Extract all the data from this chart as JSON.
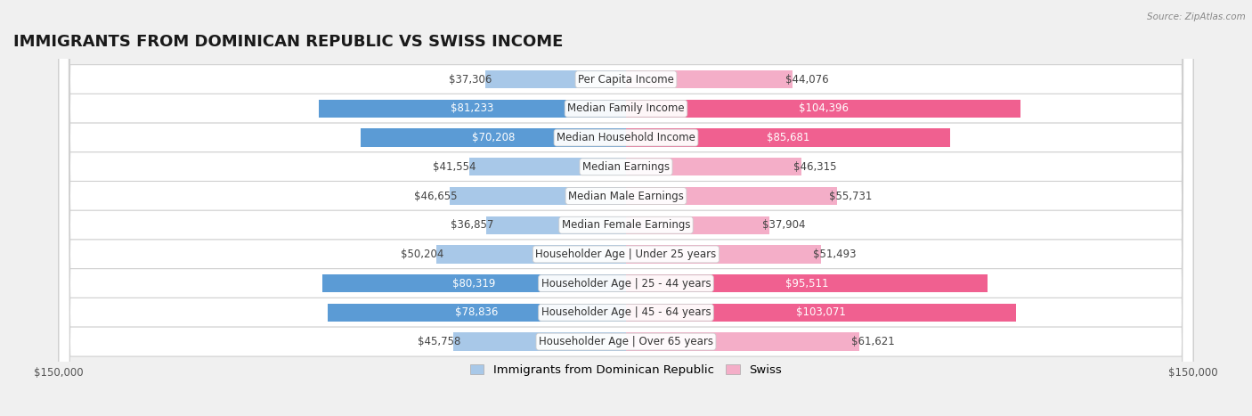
{
  "title": "IMMIGRANTS FROM DOMINICAN REPUBLIC VS SWISS INCOME",
  "source": "Source: ZipAtlas.com",
  "categories": [
    "Per Capita Income",
    "Median Family Income",
    "Median Household Income",
    "Median Earnings",
    "Median Male Earnings",
    "Median Female Earnings",
    "Householder Age | Under 25 years",
    "Householder Age | 25 - 44 years",
    "Householder Age | 45 - 64 years",
    "Householder Age | Over 65 years"
  ],
  "dominican": [
    37306,
    81233,
    70208,
    41554,
    46655,
    36857,
    50204,
    80319,
    78836,
    45758
  ],
  "swiss": [
    44076,
    104396,
    85681,
    46315,
    55731,
    37904,
    51493,
    95511,
    103071,
    61621
  ],
  "dominican_labels": [
    "$37,306",
    "$81,233",
    "$70,208",
    "$41,554",
    "$46,655",
    "$36,857",
    "$50,204",
    "$80,319",
    "$78,836",
    "$45,758"
  ],
  "swiss_labels": [
    "$44,076",
    "$104,396",
    "$85,681",
    "$46,315",
    "$55,731",
    "$37,904",
    "$51,493",
    "$95,511",
    "$103,071",
    "$61,621"
  ],
  "dominican_color_light": "#a8c8e8",
  "dominican_color_dark": "#5b9bd5",
  "swiss_color_light": "#f4aec8",
  "swiss_color_dark": "#f06090",
  "label_color_white": "#ffffff",
  "label_color_dark": "#444444",
  "max_value": 150000,
  "background_color": "#f0f0f0",
  "row_bg_color": "#ffffff",
  "row_border_color": "#d0d0d0",
  "title_fontsize": 13,
  "label_fontsize": 8.5,
  "category_fontsize": 8.5,
  "legend_fontsize": 9.5,
  "axis_label_fontsize": 8.5,
  "dom_dark_threshold": 55000,
  "swiss_dark_threshold": 65000
}
